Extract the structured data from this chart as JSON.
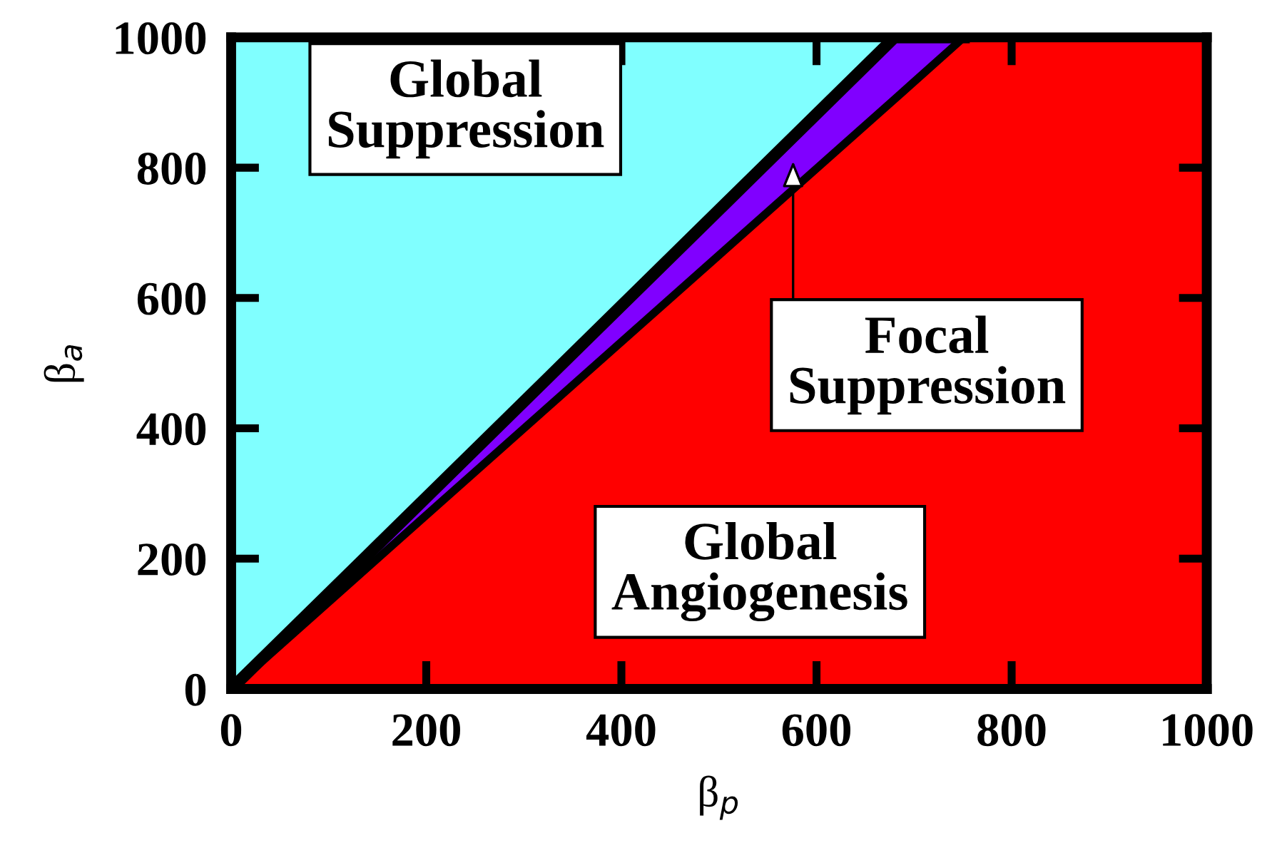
{
  "chart_data": {
    "type": "area",
    "stacked": true,
    "xlabel": "β$_{p}$",
    "ylabel": "β$_{a}$",
    "xlim": [
      0,
      1000
    ],
    "ylim": [
      0,
      1000
    ],
    "xticks": [
      0,
      200,
      400,
      600,
      800,
      1000
    ],
    "yticks": [
      0,
      200,
      400,
      600,
      800,
      1000
    ],
    "grid": false,
    "series": [
      {
        "color": "#ff0000",
        "x": [
          0,
          213,
          680,
          751,
          1000
        ],
        "values": [
          0,
          284,
          905,
          1000,
          1000
        ]
      },
      {
        "color": "#8000ff",
        "x": [
          0,
          213,
          680,
          751
        ],
        "values": [
          0,
          29,
          95,
          0
        ]
      },
      {
        "color": "#80ffff",
        "x": [
          0,
          213,
          680
        ],
        "values": [
          1000,
          687,
          0
        ]
      }
    ],
    "annotations": [
      "Global\nSuppression",
      "Global\nAngiogenesis",
      "Focal\nSuppression"
    ]
  }
}
